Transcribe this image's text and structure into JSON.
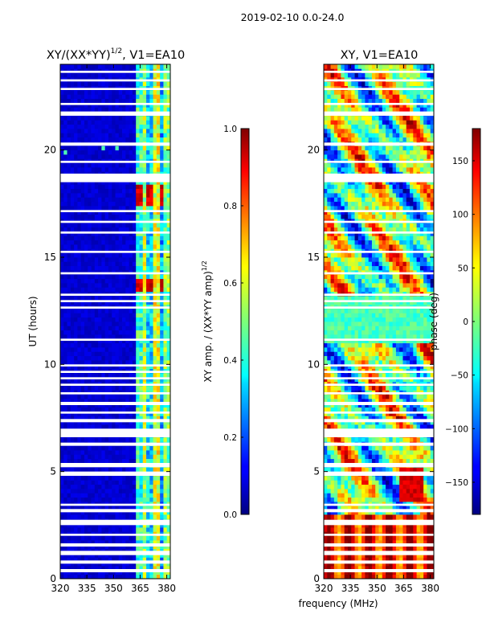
{
  "figure": {
    "suptitle": "2019-02-10 0.0-24.0",
    "xlabel": "frequency (MHz)"
  },
  "chart_data": [
    {
      "type": "heatmap",
      "title": "XY/(XX*YY)",
      "title_exponent": "1/2",
      "title_suffix": ", V1=EA10",
      "ylabel": "UT (hours)",
      "xlim": [
        320,
        382
      ],
      "ylim": [
        0,
        24
      ],
      "xticks": [
        320,
        335,
        350,
        365,
        380
      ],
      "yticks": [
        0,
        5,
        10,
        15,
        20
      ],
      "colorbar": {
        "label": "XY amp. / (XX*YY amp)",
        "label_exponent": "1/2",
        "range": [
          0.0,
          1.0
        ],
        "ticks": [
          "0.0",
          "0.2",
          "0.4",
          "0.6",
          "0.8",
          "1.0"
        ],
        "tick_values": [
          0.0,
          0.2,
          0.4,
          0.6,
          0.8,
          1.0
        ],
        "colormap": "jet"
      },
      "gap_bands_hours": [
        [
          0.3,
          0.45
        ],
        [
          0.7,
          0.85
        ],
        [
          1.1,
          1.3
        ],
        [
          1.5,
          1.65
        ],
        [
          2.0,
          2.1
        ],
        [
          2.5,
          2.75
        ],
        [
          3.1,
          3.25
        ],
        [
          3.4,
          3.5
        ],
        [
          4.8,
          5.0
        ],
        [
          5.2,
          5.4
        ],
        [
          6.2,
          6.35
        ],
        [
          6.6,
          7.0
        ],
        [
          7.3,
          7.45
        ],
        [
          7.7,
          7.8
        ],
        [
          8.1,
          8.25
        ],
        [
          8.6,
          8.7
        ],
        [
          9.0,
          9.1
        ],
        [
          9.3,
          9.4
        ],
        [
          9.6,
          9.7
        ],
        [
          9.9,
          10.0
        ],
        [
          11.1,
          11.2
        ],
        [
          12.6,
          12.7
        ],
        [
          12.9,
          13.0
        ],
        [
          13.2,
          13.3
        ],
        [
          14.2,
          14.3
        ],
        [
          15.2,
          15.3
        ],
        [
          16.1,
          16.2
        ],
        [
          16.6,
          16.7
        ],
        [
          17.1,
          17.2
        ],
        [
          18.5,
          18.9
        ],
        [
          19.4,
          19.5
        ],
        [
          20.2,
          20.35
        ],
        [
          21.6,
          21.8
        ],
        [
          22.1,
          22.2
        ],
        [
          22.8,
          22.9
        ],
        [
          23.2,
          23.3
        ],
        [
          23.6,
          23.7
        ]
      ],
      "feature_description": "low amplitude (~0.05) at 320-363 MHz; mixed 0.3-0.6 at 363-382 MHz; peaks near 1.0 around 13-14 h and 17-18.5 h"
    },
    {
      "type": "heatmap",
      "title": "XY, V1=EA10",
      "ylabel": "",
      "xlim": [
        320,
        382
      ],
      "ylim": [
        0,
        24
      ],
      "xticks": [
        320,
        335,
        350,
        365,
        380
      ],
      "yticks": [
        0,
        5,
        10,
        15,
        20
      ],
      "colorbar": {
        "label": "phase (deg)",
        "range": [
          -180,
          180
        ],
        "ticks": [
          "−150",
          "−100",
          "−50",
          "0",
          "50",
          "100",
          "150"
        ],
        "tick_values": [
          -150,
          -100,
          -50,
          0,
          50,
          100,
          150
        ],
        "colormap": "jet"
      },
      "gap_bands_hours": [
        [
          0.3,
          0.45
        ],
        [
          0.7,
          0.85
        ],
        [
          1.1,
          1.3
        ],
        [
          1.5,
          1.65
        ],
        [
          2.0,
          2.1
        ],
        [
          2.5,
          2.75
        ],
        [
          3.1,
          3.25
        ],
        [
          3.4,
          3.5
        ],
        [
          4.8,
          5.0
        ],
        [
          5.2,
          5.4
        ],
        [
          6.2,
          6.35
        ],
        [
          6.6,
          7.0
        ],
        [
          7.3,
          7.45
        ],
        [
          7.7,
          7.8
        ],
        [
          8.1,
          8.25
        ],
        [
          8.6,
          8.7
        ],
        [
          9.0,
          9.1
        ],
        [
          9.3,
          9.4
        ],
        [
          9.6,
          9.7
        ],
        [
          9.9,
          10.0
        ],
        [
          11.1,
          11.2
        ],
        [
          12.6,
          12.7
        ],
        [
          12.9,
          13.0
        ],
        [
          13.2,
          13.3
        ],
        [
          14.2,
          14.3
        ],
        [
          15.2,
          15.3
        ],
        [
          16.1,
          16.2
        ],
        [
          16.6,
          16.7
        ],
        [
          17.1,
          17.2
        ],
        [
          18.5,
          18.9
        ],
        [
          19.4,
          19.5
        ],
        [
          20.2,
          20.35
        ],
        [
          21.6,
          21.8
        ],
        [
          22.1,
          22.2
        ],
        [
          22.8,
          22.9
        ],
        [
          23.2,
          23.3
        ],
        [
          23.6,
          23.7
        ]
      ],
      "feature_description": "phase mostly noisy across full range; 0-3 h strongly striped red/orange (~150 deg) with yellow bands; cyan (~-20 deg) region 11-13 h; red blob near 370 MHz at 3.5-5 h"
    }
  ]
}
